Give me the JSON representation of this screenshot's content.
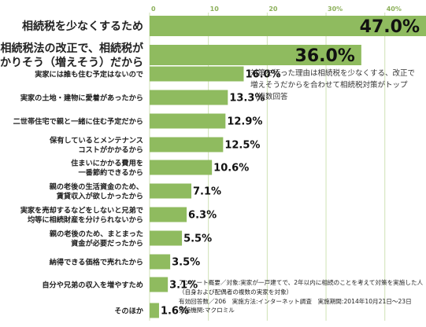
{
  "chart_data": {
    "type": "bar",
    "orientation": "horizontal",
    "xlim": [
      0,
      47
    ],
    "ticks": [
      {
        "value": 0,
        "label": "0"
      },
      {
        "value": 10,
        "label": "10"
      },
      {
        "value": 20,
        "label": "20"
      },
      {
        "value": 30,
        "label": "30%"
      },
      {
        "value": 40,
        "label": "40%"
      }
    ],
    "bar_color": "#8fbb5f",
    "grid_color": "#cfe2b5",
    "categories": [
      "相続税を少なくするため",
      "相続税法の改正で、相続税が\nかかりそう（増えそう）だから",
      "実家には誰も住む予定はないので",
      "実家の土地・建物に愛着があったから",
      "二世帯住宅で親と一緒に住む予定だから",
      "保有しているとメンテナンス\nコストがかかるから",
      "住まいにかかる費用を\n一番節約できるから",
      "親の老後の生活資金のため、\n賃貸収入が欲しかったから",
      "実家を売却するなどをしないと兄弟で\n均等に相続財産を分けられないから",
      "親の老後のため、まとまった\n資金が必要だったから",
      "納得できる価格で売れたから",
      "自分や兄弟の収入を増やすため",
      "そのほか"
    ],
    "values": [
      47.0,
      36.0,
      16.0,
      13.3,
      12.9,
      12.5,
      10.6,
      7.1,
      6.3,
      5.5,
      3.5,
      3.1,
      1.6
    ],
    "value_labels": [
      "47.0%",
      "36.0%",
      "16.0%",
      "13.3%",
      "12.9%",
      "12.5%",
      "10.6%",
      "7.1%",
      "6.3%",
      "5.5%",
      "3.5%",
      "3.1%",
      "1.6%"
    ]
  },
  "annotation": "対策を行った理由は相続税を少なくする、改正で増えそうだからを合わせて相続税対策がトップ（複数回答",
  "survey_notes": [
    "アンケート概要／対象:実家が一戸建てで、2年以内に相続のことを考えて対策を実施した人",
    "（自身および配偶者の複数の実家を対象）",
    "有効回答数／206　実施方法:インターネット調査　実施期間:2014年10月21日～23日",
    "実施機関:マクロミル"
  ]
}
